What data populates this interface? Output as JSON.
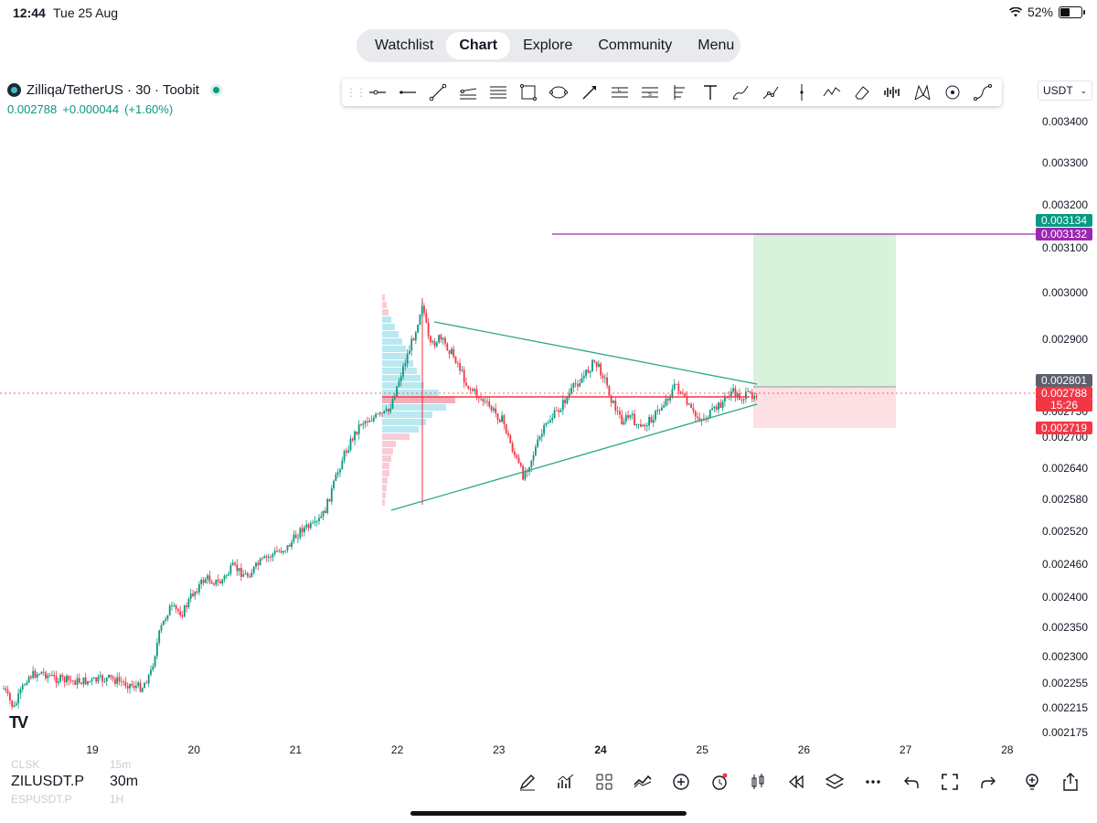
{
  "status_bar": {
    "time": "12:44",
    "date": "Tue 25 Aug",
    "battery": "52%",
    "battery_level": 0.52
  },
  "nav": {
    "items": [
      "Watchlist",
      "Chart",
      "Explore",
      "Community",
      "Menu"
    ],
    "active": "Chart"
  },
  "symbol": {
    "title": "Zilliqa/TetherUS · 30 · Toobit",
    "price": "0.002788",
    "change": "+0.000044",
    "change_pct": "(+1.60%)"
  },
  "currency": "USDT",
  "drawing_tools": [
    "horizontal-ray-icon",
    "horizontal-line-icon",
    "trend-line-icon",
    "parallel-channel-icon",
    "fib-retracement-icon",
    "rectangle-icon",
    "ellipse-icon",
    "arrow-icon",
    "long-position-icon",
    "short-position-icon",
    "price-range-icon",
    "text-icon",
    "brush-icon",
    "path-icon",
    "vertical-line-icon",
    "pattern-icon",
    "eraser-icon",
    "volume-profile-icon",
    "xabcd-icon",
    "circle-icon",
    "curve-icon"
  ],
  "chart_data": {
    "type": "candlestick",
    "x_tick_labels": [
      "19",
      "20",
      "21",
      "22",
      "23",
      "24",
      "25",
      "26",
      "27",
      "28"
    ],
    "y_tick_labels": [
      "0.003400",
      "0.003300",
      "0.003200",
      "0.003100",
      "0.003000",
      "0.002900",
      "0.002750",
      "0.002700",
      "0.002640",
      "0.002580",
      "0.002520",
      "0.002460",
      "0.002400",
      "0.002350",
      "0.002300",
      "0.002255",
      "0.002215",
      "0.002175"
    ],
    "price_tags": [
      {
        "value": "0.003134",
        "color": "#089981"
      },
      {
        "value": "0.003132",
        "color": "#9c27b0"
      },
      {
        "value": "0.002801",
        "color": "#5d606b"
      },
      {
        "value": "0.002788",
        "color": "#f23645"
      },
      {
        "value": "15:26",
        "color": "#f23645"
      },
      {
        "value": "0.002719",
        "color": "#f23645"
      }
    ],
    "colors": {
      "up": "#089981",
      "down": "#f23645",
      "triangle": "#2aa789",
      "target_line": "#9c27b0",
      "profit_zone": "#d9f2dc",
      "loss_zone": "#fde0e3"
    }
  },
  "bottom_bar": {
    "symbol": "ZILUSDT.P",
    "timeframe": "30m",
    "ghost_symbol_above": "CLSK",
    "ghost_tf_above": "15m",
    "ghost_symbol_below": "ESPUSDT.P",
    "ghost_tf_below": "1H",
    "tools": [
      "pen-icon",
      "indicators-icon",
      "templates-icon",
      "compare-icon",
      "add-icon",
      "alert-icon",
      "candle-type-icon",
      "replay-icon",
      "layers-icon",
      "more-icon",
      "undo-icon",
      "fullscreen-icon",
      "redo-icon",
      "idea-icon",
      "share-icon"
    ]
  },
  "logo": "TV"
}
